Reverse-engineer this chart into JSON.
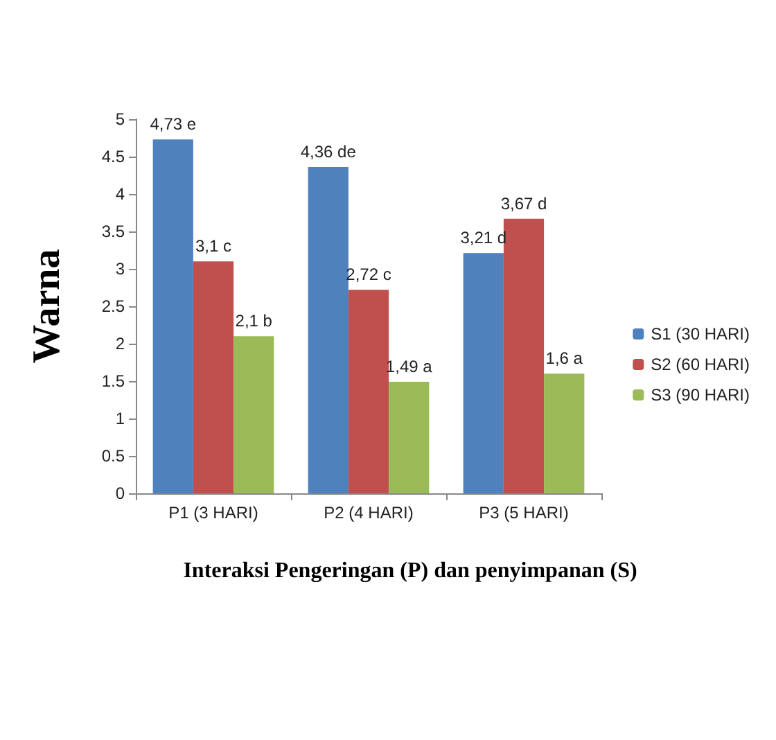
{
  "chart_data": {
    "type": "bar",
    "xlabel": "Interaksi Pengeringan (P) dan penyimpanan (S)",
    "ylabel": "Warna",
    "categories": [
      "P1 (3 HARI)",
      "P2 (4 HARI)",
      "P3 (5 HARI)"
    ],
    "series": [
      {
        "name": "S1 (30 HARI)",
        "color": "#4f81bd",
        "values": [
          4.73,
          4.36,
          3.21
        ],
        "value_labels": [
          "4,73 e",
          "4,36 de",
          "3,21 d"
        ]
      },
      {
        "name": "S2 (60 HARI)",
        "color": "#c0504d",
        "values": [
          3.1,
          2.72,
          3.67
        ],
        "value_labels": [
          "3,1 c",
          "2,72 c",
          "3,67 d"
        ]
      },
      {
        "name": "S3 (90 HARI)",
        "color": "#9bbb59",
        "values": [
          2.1,
          1.49,
          1.6
        ],
        "value_labels": [
          "2,1 b",
          "1,49 a",
          "1,6 a"
        ]
      }
    ],
    "ylim": [
      0,
      5
    ],
    "yticks": [
      0,
      0.5,
      1,
      1.5,
      2,
      2.5,
      3,
      3.5,
      4,
      4.5,
      5
    ],
    "grid": false,
    "legend": "right"
  }
}
